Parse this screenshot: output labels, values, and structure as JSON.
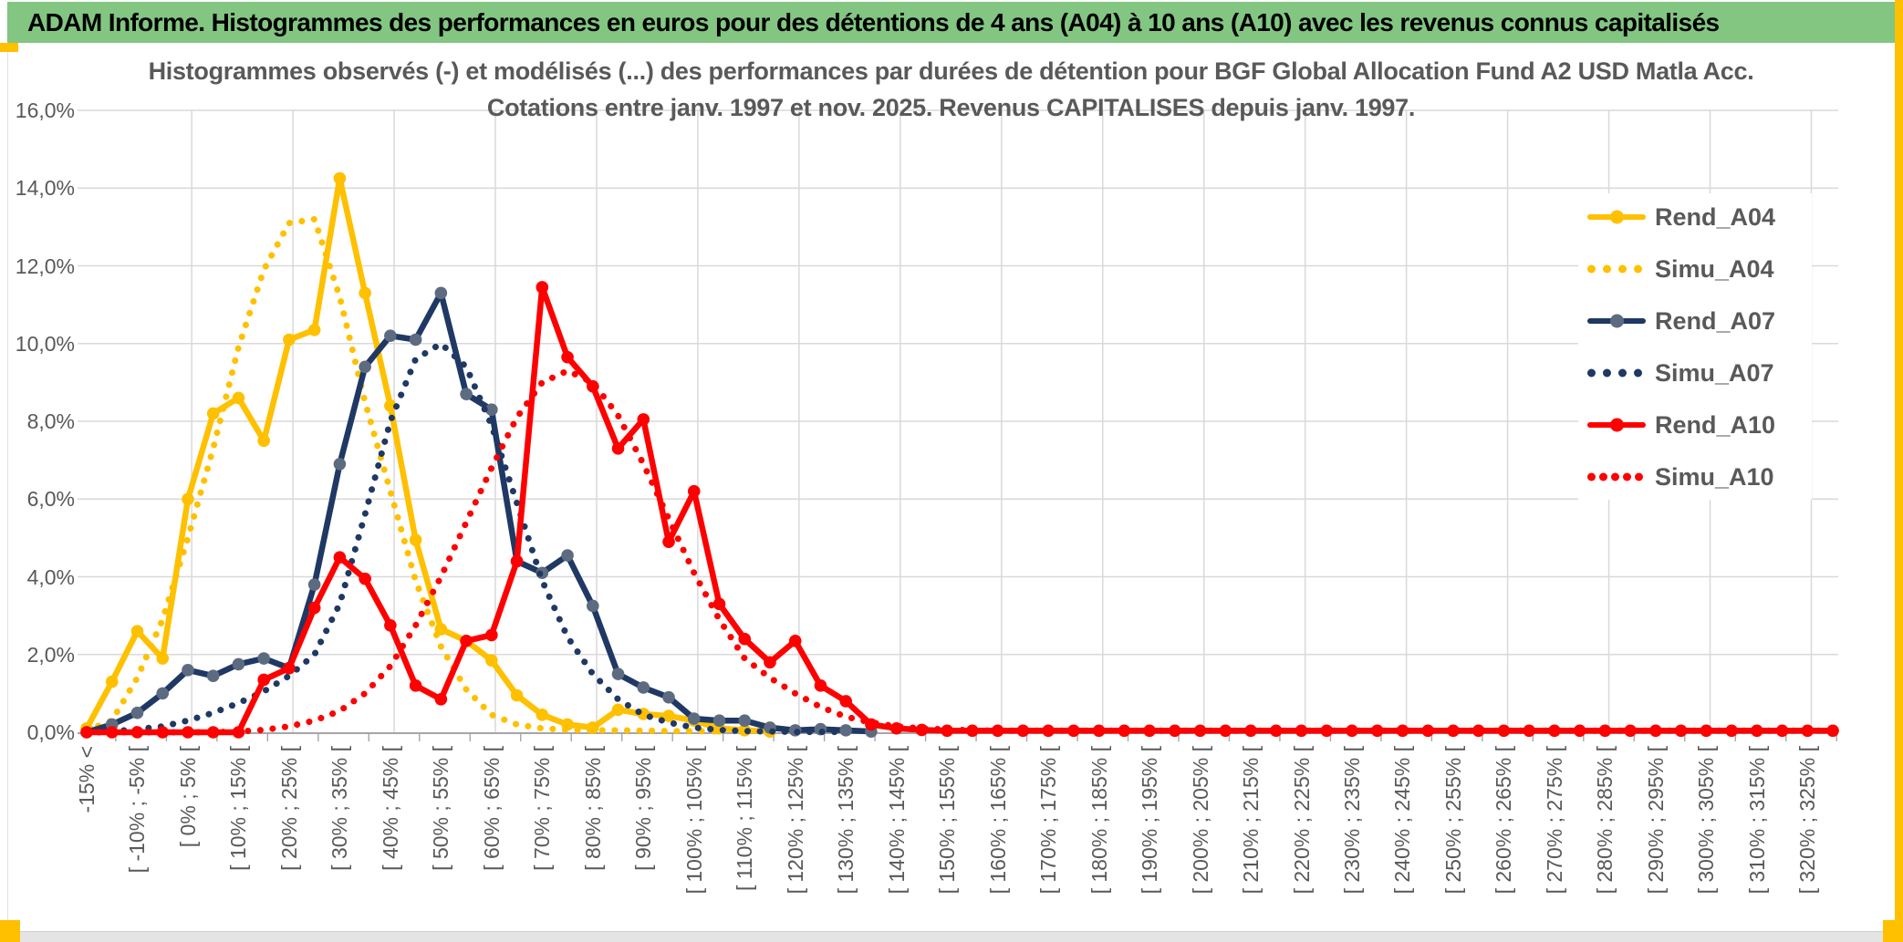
{
  "header": {
    "title": "ADAM Informe. Histogrammes des performances en euros pour des détentions de 4 ans (A04) à 10 ans (A10) avec les revenus connus capitalisés"
  },
  "colors": {
    "header_bg": "#82C682",
    "accent_gold": "#FFC000",
    "grid": "#D9D9D9",
    "axis": "#A6A6A6",
    "text": "#595959"
  },
  "chart_data": {
    "type": "line",
    "title_line1": "Histogrammes observés (-) et modélisés (...) des performances par durées de détention pour BGF Global Allocation Fund A2 USD Matla Acc.",
    "title_line2": "Cotations entre janv. 1997 et nov. 2025. Revenus CAPITALISES depuis janv. 1997.",
    "n_bins": 70,
    "x_tick_every": 2,
    "x_tick_labels": [
      "-15% <",
      "[ -10% ; -5% [",
      "[ 0% ; 5% [",
      "[ 10% ; 15% [",
      "[ 20% ; 25% [",
      "[ 30% ; 35% [",
      "[ 40% ; 45% [",
      "[ 50% ; 55% [",
      "[ 60% ; 65% [",
      "[ 70% ; 75% [",
      "[ 80% ; 85% [",
      "[ 90% ; 95% [",
      "[ 100% ; 105% [",
      "[ 110% ; 115% [",
      "[ 120% ; 125% [",
      "[ 130% ; 135% [",
      "[ 140% ; 145% [",
      "[ 150% ; 155% [",
      "[ 160% ; 165% [",
      "[ 170% ; 175% [",
      "[ 180% ; 185% [",
      "[ 190% ; 195% [",
      "[ 200% ; 205% [",
      "[ 210% ; 215% [",
      "[ 220% ; 225% [",
      "[ 230% ; 235% [",
      "[ 240% ; 245% [",
      "[ 250% ; 255% [",
      "[ 260% ; 265% [",
      "[ 270% ; 275% [",
      "[ 280% ; 285% [",
      "[ 290% ; 295% [",
      "[ 300% ; 305% [",
      "[ 310% ; 315% [",
      "[ 320% ; 325% ["
    ],
    "ylim": [
      0,
      16
    ],
    "y_tick_step": 2,
    "y_tick_labels": [
      "0,0%",
      "2,0%",
      "4,0%",
      "6,0%",
      "8,0%",
      "10,0%",
      "12,0%",
      "14,0%",
      "16,0%"
    ],
    "grid": true,
    "legend_position": "right-inside",
    "series": [
      {
        "name": "Rend_A04",
        "style": "solid",
        "color": "#FFC000",
        "marker_color": "#FFC000",
        "values": [
          0.1,
          1.3,
          2.6,
          1.9,
          6.0,
          8.2,
          8.6,
          7.5,
          10.1,
          10.35,
          14.25,
          11.3,
          8.4,
          4.95,
          2.65,
          2.35,
          1.85,
          0.95,
          0.45,
          0.2,
          0.12,
          0.58,
          0.47,
          0.42,
          0.3,
          0.1,
          0.05,
          0.02
        ]
      },
      {
        "name": "Simu_A04",
        "style": "dotted",
        "color": "#FFC000",
        "values": [
          0.05,
          0.3,
          1.4,
          2.9,
          5.0,
          7.3,
          9.9,
          11.9,
          13.1,
          13.2,
          11.2,
          8.5,
          6.2,
          3.9,
          2.2,
          1.1,
          0.45,
          0.2,
          0.1,
          0.06,
          0.05,
          0.05,
          0.04,
          0.03,
          0.03,
          0.02
        ]
      },
      {
        "name": "Rend_A07",
        "style": "solid",
        "color": "#1F3864",
        "marker_color": "#5D6B80",
        "values": [
          0.0,
          0.2,
          0.5,
          1.0,
          1.6,
          1.45,
          1.75,
          1.9,
          1.65,
          3.8,
          6.9,
          9.4,
          10.2,
          10.1,
          11.3,
          8.7,
          8.3,
          4.4,
          4.1,
          4.55,
          3.25,
          1.5,
          1.15,
          0.9,
          0.35,
          0.3,
          0.3,
          0.12,
          0.05,
          0.08,
          0.05,
          0.02
        ]
      },
      {
        "name": "Simu_A07",
        "style": "dotted",
        "color": "#1F3864",
        "values": [
          0.0,
          0.02,
          0.08,
          0.15,
          0.3,
          0.5,
          0.75,
          1.05,
          1.45,
          2.0,
          3.3,
          5.6,
          8.0,
          9.6,
          10.0,
          9.4,
          7.9,
          5.9,
          3.9,
          2.45,
          1.5,
          0.85,
          0.45,
          0.25,
          0.12,
          0.06,
          0.03,
          0.02,
          0.01,
          0.01,
          0.01
        ]
      },
      {
        "name": "Rend_A10",
        "style": "solid",
        "color": "#FF0000",
        "marker_color": "#FF0000",
        "values": [
          0,
          0,
          0,
          0,
          0,
          0,
          0,
          1.35,
          1.65,
          3.2,
          4.5,
          3.95,
          2.75,
          1.2,
          0.85,
          2.35,
          2.5,
          4.4,
          11.45,
          9.65,
          8.9,
          7.3,
          8.05,
          4.9,
          6.2,
          3.3,
          2.4,
          1.8,
          2.35,
          1.2,
          0.8,
          0.2,
          0.1,
          0.06,
          0.04,
          0.04,
          0.04,
          0.04,
          0.04,
          0.04,
          0.04,
          0.04,
          0.04,
          0.04,
          0.04,
          0.04,
          0.04,
          0.04,
          0.04,
          0.04,
          0.04,
          0.04,
          0.04,
          0.04,
          0.04,
          0.04,
          0.04,
          0.04,
          0.04,
          0.04,
          0.04,
          0.04,
          0.04,
          0.04,
          0.04,
          0.04,
          0.04,
          0.04,
          0.04,
          0.04
        ]
      },
      {
        "name": "Simu_A10",
        "style": "dotted",
        "color": "#FF0000",
        "values": [
          0,
          0,
          0,
          0,
          0,
          0,
          0.02,
          0.06,
          0.15,
          0.3,
          0.55,
          1.0,
          1.7,
          2.75,
          4.0,
          5.4,
          6.8,
          8.1,
          9.0,
          9.3,
          9.0,
          8.15,
          6.9,
          5.5,
          4.1,
          2.9,
          1.9,
          1.4,
          1.0,
          0.65,
          0.4,
          0.25,
          0.15,
          0.1,
          0.07,
          0.05,
          0.04,
          0.04,
          0.04,
          0.04,
          0.04,
          0.04,
          0.04,
          0.04,
          0.04,
          0.04,
          0.04,
          0.04,
          0.04,
          0.04,
          0.04,
          0.04,
          0.04,
          0.04,
          0.04,
          0.04,
          0.04,
          0.04,
          0.04,
          0.04,
          0.04,
          0.04,
          0.04,
          0.04,
          0.04,
          0.04,
          0.04,
          0.04,
          0.04,
          0.04
        ]
      }
    ]
  }
}
